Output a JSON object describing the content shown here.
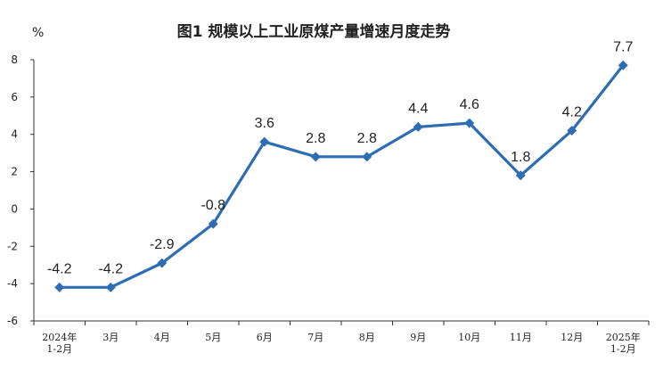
{
  "chart_data": {
    "type": "line",
    "title": "图1  规模以上工业原煤产量增速月度走势",
    "ylabel": "%",
    "xlabel": "",
    "ylim": [
      -6,
      8
    ],
    "yticks": [
      8,
      6,
      4,
      2,
      0,
      -2,
      -4,
      -6
    ],
    "grid": false,
    "legend": "none",
    "categories": [
      [
        "2024年",
        "1-2月"
      ],
      [
        "3月"
      ],
      [
        "4月"
      ],
      [
        "5月"
      ],
      [
        "6月"
      ],
      [
        "7月"
      ],
      [
        "8月"
      ],
      [
        "9月"
      ],
      [
        "10月"
      ],
      [
        "11月"
      ],
      [
        "12月"
      ],
      [
        "2025年",
        "1-2月"
      ]
    ],
    "series": [
      {
        "values": [
          -4.2,
          -4.2,
          -2.9,
          -0.8,
          3.6,
          2.8,
          2.8,
          4.4,
          4.6,
          1.8,
          4.2,
          7.7
        ],
        "labels": [
          "-4.2",
          "-4.2",
          "-2.9",
          "-0.8",
          "3.6",
          "2.8",
          "2.8",
          "4.4",
          "4.6",
          "1.8",
          "4.2",
          "7.7"
        ],
        "color": "#2E6DB4",
        "marker": "diamond"
      }
    ]
  }
}
